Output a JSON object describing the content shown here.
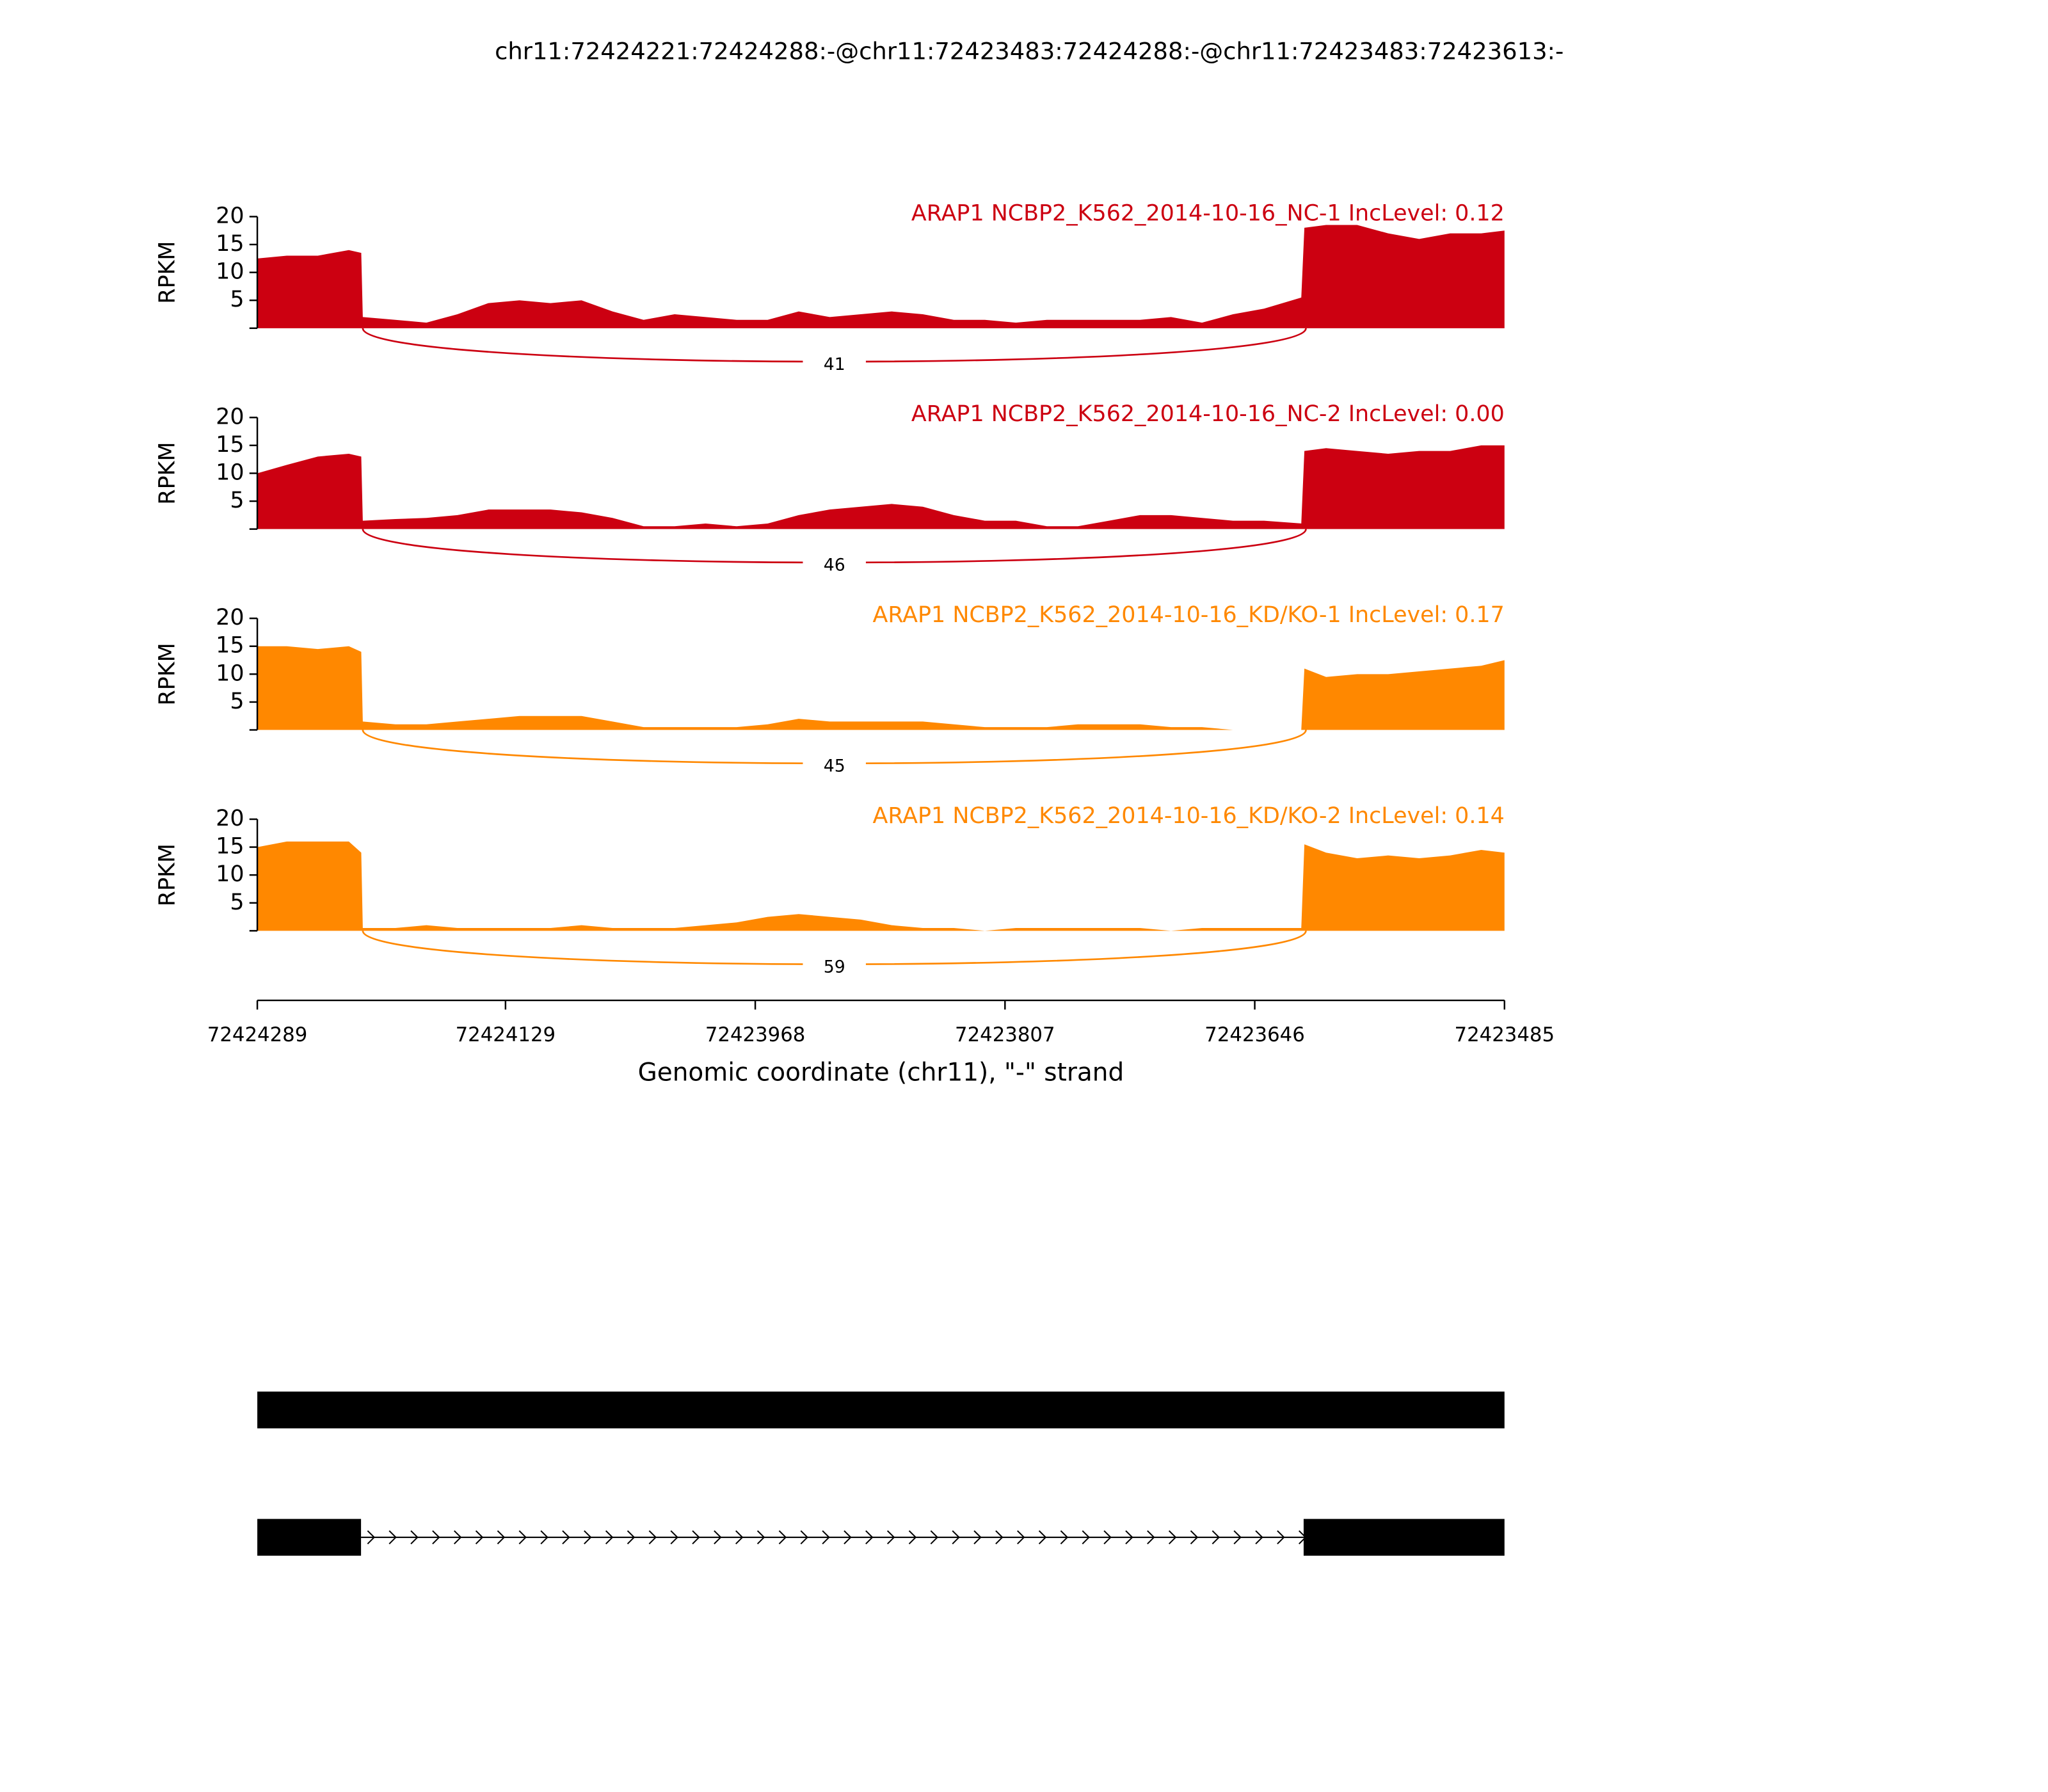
{
  "title": "chr11:72424221:72424288:-@chr11:72423483:72424288:-@chr11:72423483:72423613:-",
  "chart_data": [
    {
      "type": "area",
      "title": "ARAP1 NCBP2_K562_2014-10-16_NC-1 IncLevel: 0.12",
      "ylabel": "RPKM",
      "color": "#cc0011",
      "xlim": [
        72424289,
        72423485
      ],
      "ylim": [
        0,
        20
      ],
      "yticks": [
        5,
        10,
        15,
        20
      ],
      "x": [
        72424289,
        72424270,
        72424250,
        72424230,
        72424222,
        72424221,
        72424200,
        72424180,
        72424160,
        72424140,
        72424120,
        72424100,
        72424080,
        72424060,
        72424040,
        72424020,
        72424000,
        72423980,
        72423960,
        72423940,
        72423920,
        72423900,
        72423880,
        72423860,
        72423840,
        72423820,
        72423800,
        72423780,
        72423760,
        72423740,
        72423720,
        72423700,
        72423680,
        72423660,
        72423640,
        72423616,
        72423614,
        72423600,
        72423580,
        72423560,
        72423540,
        72423520,
        72423500,
        72423485
      ],
      "values": [
        12.5,
        13,
        13,
        14,
        13.5,
        2,
        1.5,
        1,
        2.5,
        4.5,
        5,
        4.5,
        5,
        3,
        1.5,
        2.5,
        2,
        1.5,
        1.5,
        3,
        2,
        2.5,
        3,
        2.5,
        1.5,
        1.5,
        1,
        1.5,
        1.5,
        1.5,
        1.5,
        2,
        1,
        2.5,
        3.5,
        5.5,
        18,
        18.5,
        18.5,
        17,
        16,
        17,
        17,
        17.5
      ],
      "junctions": [
        {
          "start": 72424221,
          "end": 72423613,
          "count": 41
        }
      ]
    },
    {
      "type": "area",
      "title": "ARAP1 NCBP2_K562_2014-10-16_NC-2 IncLevel: 0.00",
      "ylabel": "RPKM",
      "color": "#cc0011",
      "xlim": [
        72424289,
        72423485
      ],
      "ylim": [
        0,
        20
      ],
      "yticks": [
        5,
        10,
        15,
        20
      ],
      "x": [
        72424289,
        72424270,
        72424250,
        72424230,
        72424222,
        72424221,
        72424200,
        72424180,
        72424160,
        72424140,
        72424120,
        72424100,
        72424080,
        72424060,
        72424040,
        72424020,
        72424000,
        72423980,
        72423960,
        72423940,
        72423920,
        72423900,
        72423880,
        72423860,
        72423840,
        72423820,
        72423800,
        72423780,
        72423760,
        72423740,
        72423720,
        72423700,
        72423680,
        72423660,
        72423640,
        72423616,
        72423614,
        72423600,
        72423580,
        72423560,
        72423540,
        72423520,
        72423500,
        72423485
      ],
      "values": [
        10,
        11.5,
        13,
        13.5,
        13,
        1.5,
        1.8,
        2,
        2.5,
        3.5,
        3.5,
        3.5,
        3,
        2,
        0.5,
        0.5,
        1,
        0.5,
        1,
        2.5,
        3.5,
        4,
        4.5,
        4,
        2.5,
        1.5,
        1.5,
        0.5,
        0.5,
        1.5,
        2.5,
        2.5,
        2,
        1.5,
        1.5,
        1,
        14,
        14.5,
        14,
        13.5,
        14,
        14,
        15,
        15
      ],
      "junctions": [
        {
          "start": 72424221,
          "end": 72423613,
          "count": 46
        }
      ]
    },
    {
      "type": "area",
      "title": "ARAP1 NCBP2_K562_2014-10-16_KD/KO-1 IncLevel: 0.17",
      "ylabel": "RPKM",
      "color": "#ff8800",
      "xlim": [
        72424289,
        72423485
      ],
      "ylim": [
        0,
        20
      ],
      "yticks": [
        5,
        10,
        15,
        20
      ],
      "x": [
        72424289,
        72424270,
        72424250,
        72424230,
        72424222,
        72424221,
        72424200,
        72424180,
        72424160,
        72424140,
        72424120,
        72424100,
        72424080,
        72424060,
        72424040,
        72424020,
        72424000,
        72423980,
        72423960,
        72423940,
        72423920,
        72423900,
        72423880,
        72423860,
        72423840,
        72423820,
        72423800,
        72423780,
        72423760,
        72423740,
        72423720,
        72423700,
        72423680,
        72423660,
        72423640,
        72423616,
        72423614,
        72423600,
        72423580,
        72423560,
        72423540,
        72423520,
        72423500,
        72423485
      ],
      "values": [
        15,
        15,
        14.5,
        15,
        14,
        1.5,
        1,
        1,
        1.5,
        2,
        2.5,
        2.5,
        2.5,
        1.5,
        0.5,
        0.5,
        0.5,
        0.5,
        1,
        2,
        1.5,
        1.5,
        1.5,
        1.5,
        1,
        0.5,
        0.5,
        0.5,
        1,
        1,
        1,
        0.5,
        0.5,
        0,
        0,
        0,
        11,
        9.5,
        10,
        10,
        10.5,
        11,
        11.5,
        12.5
      ],
      "junctions": [
        {
          "start": 72424221,
          "end": 72423613,
          "count": 45
        }
      ]
    },
    {
      "type": "area",
      "title": "ARAP1 NCBP2_K562_2014-10-16_KD/KO-2 IncLevel: 0.14",
      "ylabel": "RPKM",
      "color": "#ff8800",
      "xlim": [
        72424289,
        72423485
      ],
      "ylim": [
        0,
        20
      ],
      "yticks": [
        5,
        10,
        15,
        20
      ],
      "x": [
        72424289,
        72424270,
        72424250,
        72424230,
        72424222,
        72424221,
        72424200,
        72424180,
        72424160,
        72424140,
        72424120,
        72424100,
        72424080,
        72424060,
        72424040,
        72424020,
        72424000,
        72423980,
        72423960,
        72423940,
        72423920,
        72423900,
        72423880,
        72423860,
        72423840,
        72423820,
        72423800,
        72423780,
        72423760,
        72423740,
        72423720,
        72423700,
        72423680,
        72423660,
        72423640,
        72423616,
        72423614,
        72423600,
        72423580,
        72423560,
        72423540,
        72423520,
        72423500,
        72423485
      ],
      "values": [
        15,
        16,
        16,
        16,
        14,
        0.5,
        0.5,
        1,
        0.5,
        0.5,
        0.5,
        0.5,
        1,
        0.5,
        0.5,
        0.5,
        1,
        1.5,
        2.5,
        3,
        2.5,
        2,
        1,
        0.5,
        0.5,
        0,
        0.5,
        0.5,
        0.5,
        0.5,
        0.5,
        0,
        0.5,
        0.5,
        0.5,
        0.5,
        15.5,
        14,
        13,
        13.5,
        13,
        13.5,
        14.5,
        14
      ],
      "junctions": [
        {
          "start": 72424221,
          "end": 72423613,
          "count": 59
        }
      ],
      "xticks": [
        72424289,
        72424129,
        72423968,
        72423807,
        72423646,
        72423485
      ],
      "xlabel": "Genomic coordinate (chr11), \"-\" strand"
    }
  ]
}
